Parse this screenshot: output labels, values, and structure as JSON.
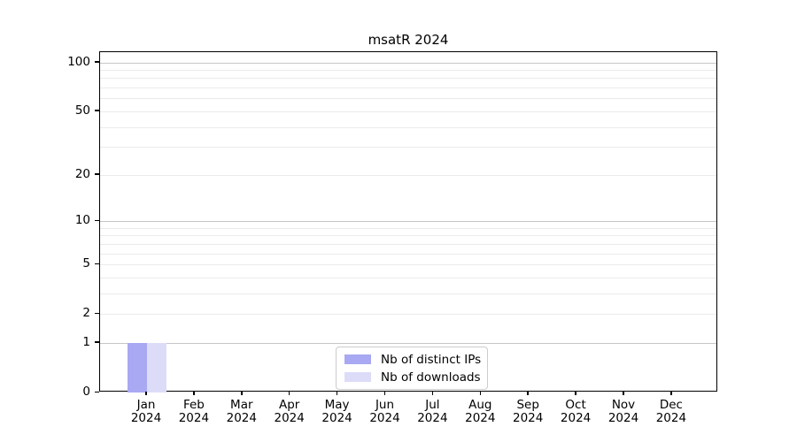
{
  "chart_data": {
    "type": "bar",
    "title": "msatR 2024",
    "x_months": [
      "Jan",
      "Feb",
      "Mar",
      "Apr",
      "May",
      "Jun",
      "Jul",
      "Aug",
      "Sep",
      "Oct",
      "Nov",
      "Dec"
    ],
    "x_year": "2024",
    "series": [
      {
        "name": "Nb of distinct IPs",
        "color": "#a8a9f2",
        "values": [
          1,
          0,
          0,
          0,
          0,
          0,
          0,
          0,
          0,
          0,
          0,
          0
        ]
      },
      {
        "name": "Nb of downloads",
        "color": "#dcdcf9",
        "values": [
          1,
          0,
          0,
          0,
          0,
          0,
          0,
          0,
          0,
          0,
          0,
          0
        ]
      }
    ],
    "yscale": "log1p",
    "ylim": [
      0,
      116
    ],
    "ytick_labels": [
      0,
      1,
      2,
      5,
      10,
      20,
      50,
      100
    ],
    "major_gridlines": [
      1,
      10,
      100
    ],
    "minor_gridlines": [
      2,
      3,
      4,
      5,
      6,
      7,
      8,
      9,
      20,
      30,
      40,
      50,
      60,
      70,
      80,
      90
    ],
    "grid_color_major": "#c6c6c6",
    "grid_color_minor": "#ebebeb",
    "legend_position": "lower center inside",
    "legend_entries": [
      "Nb of distinct IPs",
      "Nb of downloads"
    ]
  }
}
